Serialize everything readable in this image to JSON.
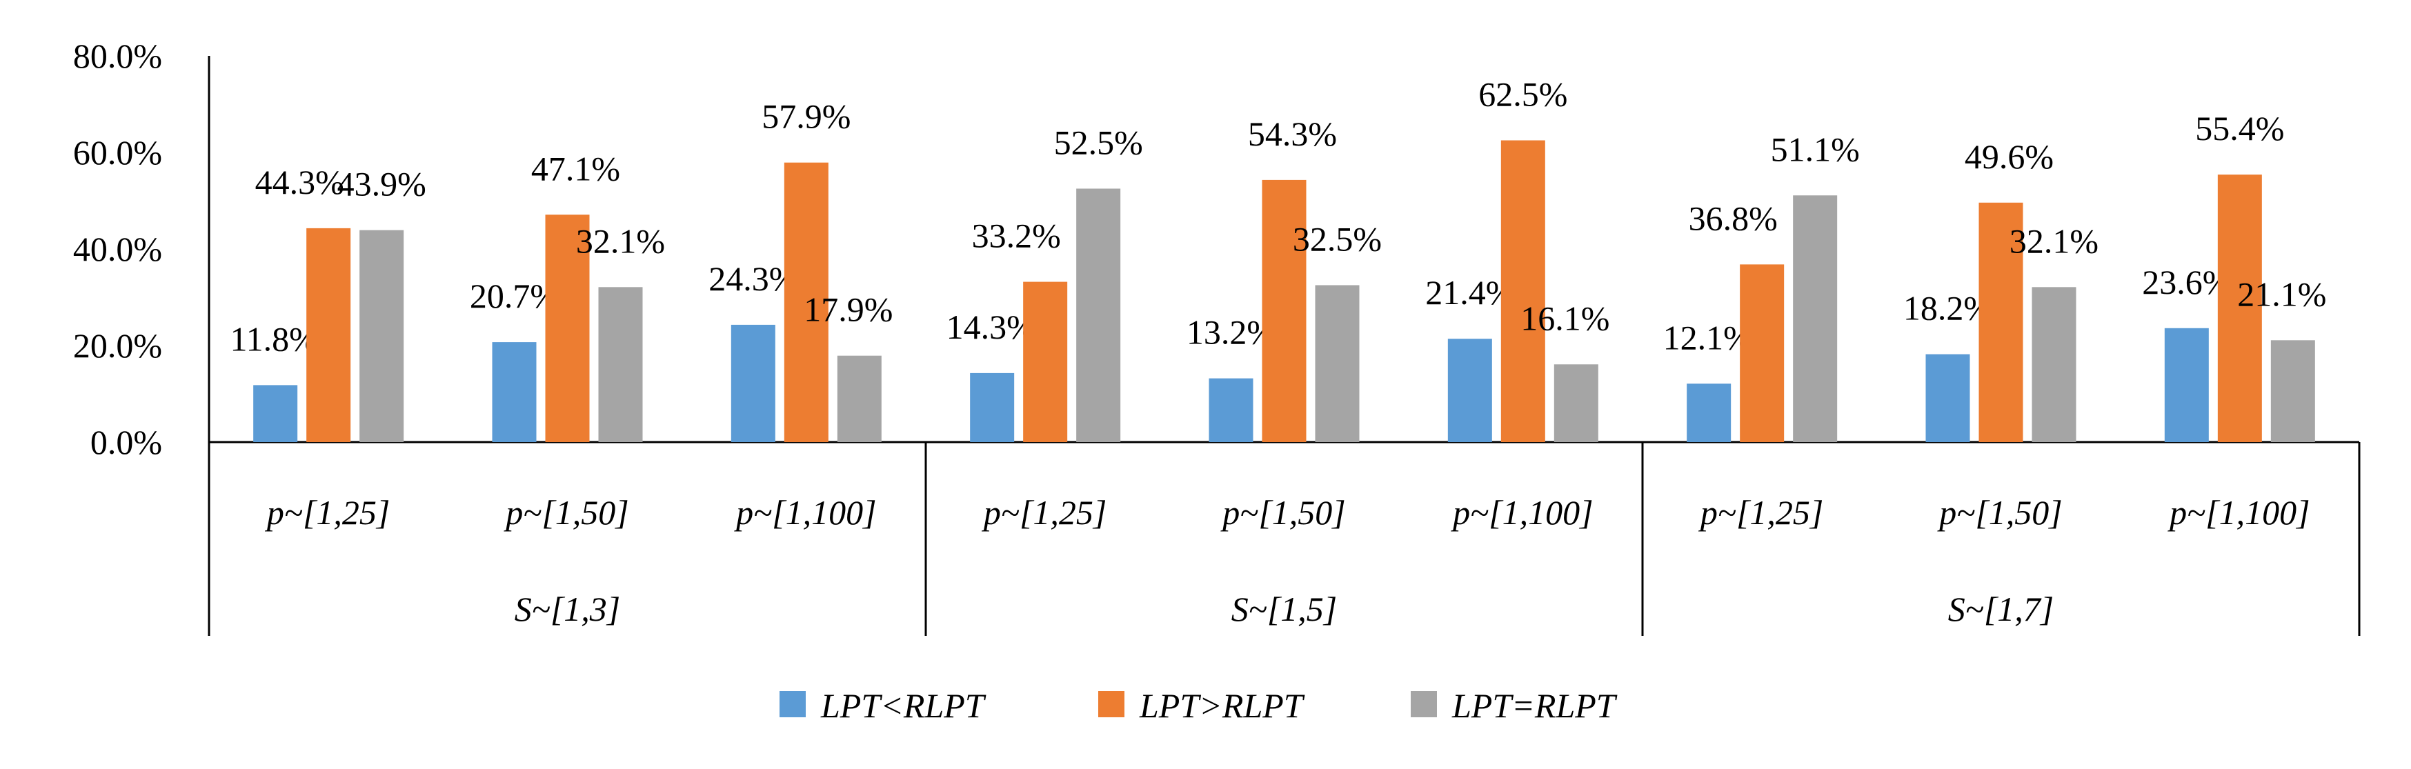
{
  "chart_data": {
    "type": "bar",
    "title": "",
    "xlabel": "",
    "ylabel": "",
    "ylim": [
      0,
      80
    ],
    "grid": false,
    "yticks": [
      "0.0%",
      "20.0%",
      "40.0%",
      "60.0%",
      "80.0%"
    ],
    "categories": [
      "p~[1,25]",
      "p~[1,50]",
      "p~[1,100]",
      "p~[1,25]",
      "p~[1,50]",
      "p~[1,100]",
      "p~[1,25]",
      "p~[1,50]",
      "p~[1,100]"
    ],
    "groups": [
      "S~[1,3]",
      "S~[1,5]",
      "S~[1,7]"
    ],
    "legend_position": "bottom",
    "series": [
      {
        "name": "LPT<RLPT",
        "color": "#5B9BD5",
        "values": [
          11.8,
          20.7,
          24.3,
          14.3,
          13.2,
          21.4,
          12.1,
          18.2,
          23.6
        ],
        "labels": [
          "11.8%",
          "20.7%",
          "24.3%",
          "14.3%",
          "13.2%",
          "21.4%",
          "12.1%",
          "18.2%",
          "23.6%"
        ]
      },
      {
        "name": "LPT>RLPT",
        "color": "#ED7D31",
        "values": [
          44.3,
          47.1,
          57.9,
          33.2,
          54.3,
          62.5,
          36.8,
          49.6,
          55.4
        ],
        "labels": [
          "44.3%",
          "47.1%",
          "57.9%",
          "33.2%",
          "54.3%",
          "62.5%",
          "36.8%",
          "49.6%",
          "55.4%"
        ]
      },
      {
        "name": "LPT=RLPT",
        "color": "#A5A5A5",
        "values": [
          43.9,
          32.1,
          17.9,
          52.5,
          32.5,
          16.1,
          51.1,
          32.1,
          21.1
        ],
        "labels": [
          "43.9%",
          "32.1%",
          "17.9%",
          "52.5%",
          "32.5%",
          "16.1%",
          "51.1%",
          "32.1%",
          "21.1%"
        ]
      }
    ]
  }
}
